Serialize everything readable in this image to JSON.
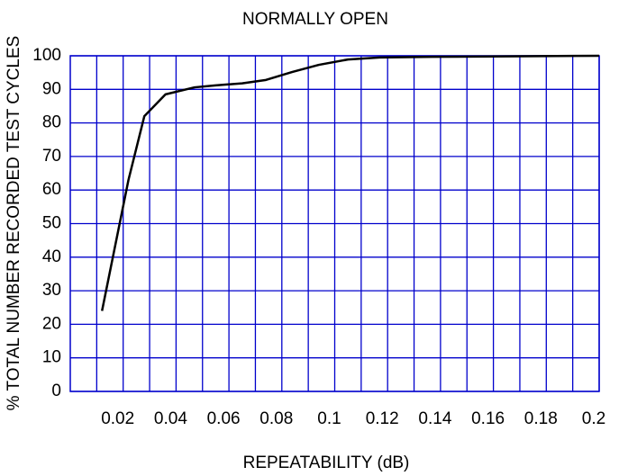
{
  "chart_data": {
    "type": "line",
    "title": "NORMALLY OPEN",
    "xlabel": "REPEATABILITY (dB)",
    "ylabel": "% TOTAL NUMBER RECORDED TEST CYCLES",
    "series": [
      {
        "name": "NORMALLY OPEN",
        "color": "#000000",
        "x": [
          0.012,
          0.022,
          0.028,
          0.036,
          0.047,
          0.055,
          0.065,
          0.074,
          0.084,
          0.094,
          0.105,
          0.117,
          0.137,
          0.2
        ],
        "values": [
          24,
          63,
          82,
          88.5,
          90.6,
          91.2,
          91.8,
          92.8,
          95.2,
          97.3,
          98.9,
          99.5,
          99.7,
          100
        ]
      }
    ],
    "xlim": [
      0,
      0.2
    ],
    "xticks": [
      0.02,
      0.04,
      0.06,
      0.08,
      0.1,
      0.12,
      0.14,
      0.16,
      0.18,
      0.2
    ],
    "ylim": [
      0,
      100
    ],
    "yticks": [
      0,
      10,
      20,
      30,
      40,
      50,
      60,
      70,
      80,
      90,
      100
    ],
    "grid": true,
    "grid_color": "#0000cc"
  }
}
